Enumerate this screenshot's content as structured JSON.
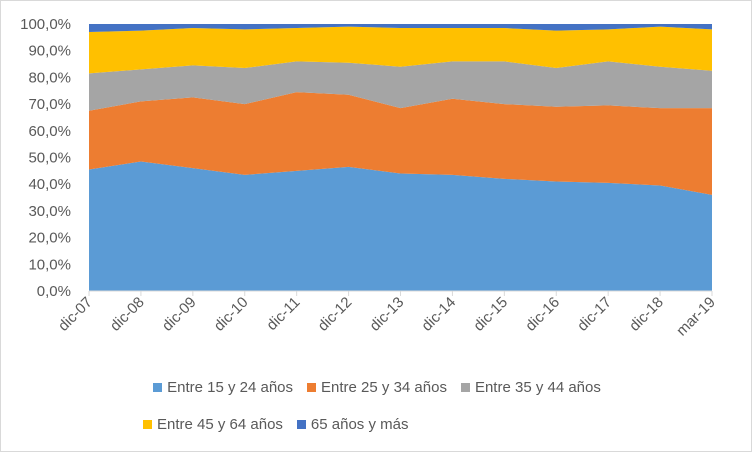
{
  "chart_data": {
    "type": "area",
    "stacked": "percent",
    "title": "",
    "xlabel": "",
    "ylabel": "",
    "ylim": [
      0,
      100
    ],
    "y_ticks": [
      "0,0%",
      "10,0%",
      "20,0%",
      "30,0%",
      "40,0%",
      "50,0%",
      "60,0%",
      "70,0%",
      "80,0%",
      "90,0%",
      "100,0%"
    ],
    "categories": [
      "dic-07",
      "dic-08",
      "dic-09",
      "dic-10",
      "dic-11",
      "dic-12",
      "dic-13",
      "dic-14",
      "dic-15",
      "dic-16",
      "dic-17",
      "dic-18",
      "mar-19"
    ],
    "legend_position": "bottom",
    "series": [
      {
        "name": "Entre 15 y 24 años",
        "color": "#5B9BD5",
        "values": [
          45.5,
          48.5,
          46,
          43.5,
          45,
          46.5,
          44,
          43.5,
          42,
          41,
          40.5,
          39.5,
          36
        ]
      },
      {
        "name": "Entre 25 y 34 años",
        "color": "#ED7D31",
        "values": [
          22,
          22.5,
          26.5,
          26.5,
          29.5,
          27,
          24.5,
          28.5,
          28,
          28,
          29,
          29,
          32.5
        ]
      },
      {
        "name": "Entre 35 y 44 años",
        "color": "#A5A5A5",
        "values": [
          14,
          12,
          12,
          13.5,
          11.5,
          12,
          15.5,
          14,
          16,
          14.5,
          16.5,
          15.5,
          14
        ]
      },
      {
        "name": "Entre 45 y 64 años",
        "color": "#FFC000",
        "values": [
          15.5,
          14.5,
          14,
          14.5,
          12.5,
          13.5,
          14.5,
          12.5,
          12.5,
          14,
          12,
          15,
          15.5
        ]
      },
      {
        "name": "65 años y más",
        "color": "#4472C4",
        "values": [
          3,
          2.5,
          1.5,
          2,
          1.5,
          1,
          1.5,
          1.5,
          1.5,
          2.5,
          2,
          1,
          2
        ]
      }
    ]
  }
}
